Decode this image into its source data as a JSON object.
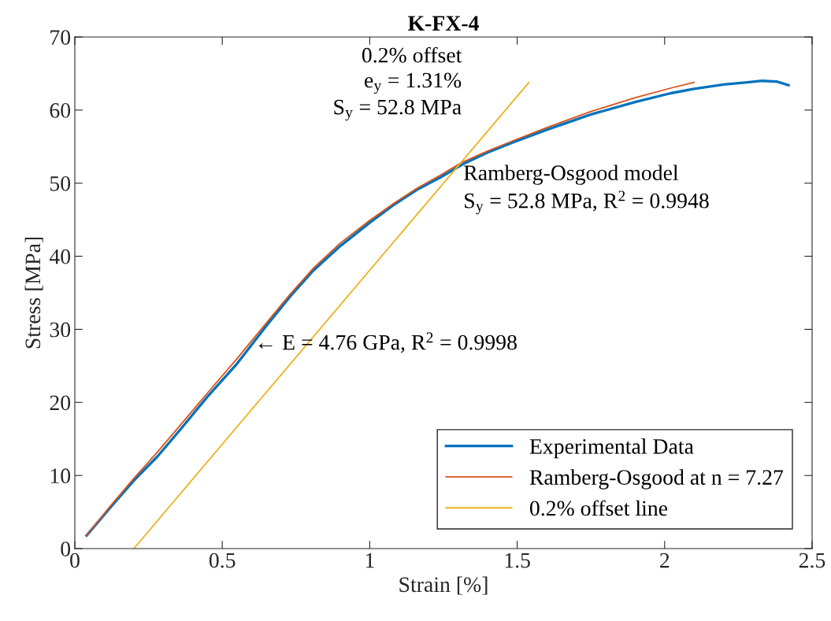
{
  "chart_data": {
    "type": "line",
    "title": "K-FX-4",
    "xlabel": "Strain [%]",
    "ylabel": "Stress [MPa]",
    "xlim": [
      0,
      2.5
    ],
    "ylim": [
      0,
      70
    ],
    "xticks": [
      0,
      0.5,
      1,
      1.5,
      2,
      2.5
    ],
    "yticks": [
      0,
      10,
      20,
      30,
      40,
      50,
      60,
      70
    ],
    "grid": false,
    "legend": "bottom right",
    "line_style": "solid",
    "marker": "none",
    "series": [
      {
        "name": "Experimental Data",
        "color": "#0072bd",
        "x": [
          0.04,
          0.12,
          0.2,
          0.28,
          0.36,
          0.45,
          0.55,
          0.65,
          0.73,
          0.81,
          0.9,
          1.0,
          1.08,
          1.16,
          1.24,
          1.32,
          1.4,
          1.48,
          1.6,
          1.75,
          1.9,
          2.02,
          2.1,
          2.2,
          2.28,
          2.33,
          2.38,
          2.42
        ],
        "values": [
          1.8,
          5.6,
          9.3,
          12.6,
          16.4,
          20.8,
          25.3,
          30.5,
          34.5,
          38.1,
          41.4,
          44.6,
          47.0,
          49.1,
          50.8,
          52.7,
          54.2,
          55.5,
          57.3,
          59.4,
          61.1,
          62.3,
          62.9,
          63.5,
          63.8,
          64.0,
          63.9,
          63.4
        ]
      },
      {
        "name": "Ramberg-Osgood at n = 7.27",
        "color": "#d95319",
        "x": [
          0.04,
          0.12,
          0.2,
          0.28,
          0.36,
          0.45,
          0.55,
          0.65,
          0.73,
          0.81,
          0.9,
          1.0,
          1.08,
          1.16,
          1.24,
          1.31,
          1.4,
          1.48,
          1.6,
          1.75,
          1.9,
          2.02,
          2.1
        ],
        "values": [
          1.8,
          5.8,
          9.6,
          13.2,
          17.0,
          21.3,
          26.0,
          30.9,
          34.8,
          38.4,
          41.8,
          44.9,
          47.2,
          49.3,
          51.1,
          52.8,
          54.4,
          55.7,
          57.6,
          59.8,
          61.7,
          63.0,
          63.8
        ]
      },
      {
        "name": "0.2% offset line",
        "color": "#edb120",
        "x": [
          0.2,
          1.54
        ],
        "values": [
          0,
          63.8
        ]
      }
    ],
    "annotations": [
      "0.2% offset\ne$_{y}$ = 1.31%\nS$_{y}$ = 52.8 MPa",
      {
        "text": "Ramberg-Osgood model\nS$_{y}$ = 52.8 MPa, R$^{2}$ = 0.9948",
        "x": 1.31,
        "y": 52.8
      },
      {
        "text": "← E = 4.76 GPa, R$^{2}$ = 0.9998",
        "x": 0.61,
        "y": 28.0
      }
    ]
  }
}
